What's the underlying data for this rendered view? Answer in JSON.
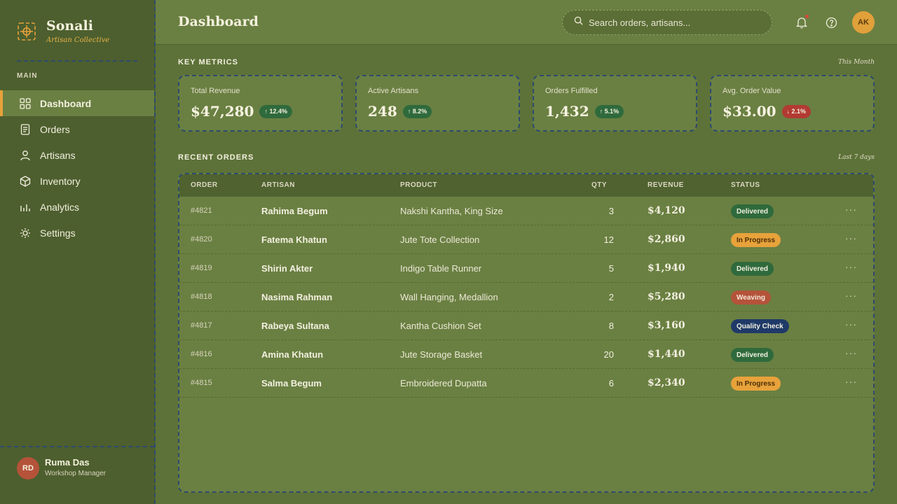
{
  "brand": {
    "name": "Sonali",
    "tagline": "Artisan Collective"
  },
  "sidebar": {
    "section_label": "MAIN",
    "items": [
      {
        "label": "Dashboard",
        "icon": "grid-icon",
        "active": true
      },
      {
        "label": "Orders",
        "icon": "document-icon"
      },
      {
        "label": "Artisans",
        "icon": "person-icon"
      },
      {
        "label": "Inventory",
        "icon": "box-icon"
      },
      {
        "label": "Analytics",
        "icon": "bar-chart-icon"
      },
      {
        "label": "Settings",
        "icon": "sun-gear-icon"
      }
    ],
    "user": {
      "initials": "RD",
      "name": "Ruma Das",
      "role": "Workshop Manager"
    }
  },
  "header": {
    "title": "Dashboard",
    "search_placeholder": "Search orders, artisans...",
    "user_initials": "AK"
  },
  "metrics": {
    "title": "KEY METRICS",
    "period": "This Month",
    "cards": [
      {
        "label": "Total Revenue",
        "value": "$47,280",
        "delta": "↑ 12.4%",
        "trend": "up"
      },
      {
        "label": "Active Artisans",
        "value": "248",
        "delta": "↑ 8.2%",
        "trend": "up"
      },
      {
        "label": "Orders Fulfilled",
        "value": "1,432",
        "delta": "↑ 5.1%",
        "trend": "up"
      },
      {
        "label": "Avg. Order Value",
        "value": "$33.00",
        "delta": "↓ 2.1%",
        "trend": "down"
      }
    ]
  },
  "orders": {
    "title": "RECENT ORDERS",
    "period": "Last 7 days",
    "columns": [
      "ORDER",
      "ARTISAN",
      "PRODUCT",
      "QTY",
      "REVENUE",
      "STATUS"
    ],
    "rows": [
      {
        "order": "#4821",
        "artisan": "Rahima Begum",
        "product": "Nakshi Kantha, King Size",
        "qty": "3",
        "revenue": "$4,120",
        "status": "Delivered"
      },
      {
        "order": "#4820",
        "artisan": "Fatema Khatun",
        "product": "Jute Tote Collection",
        "qty": "12",
        "revenue": "$2,860",
        "status": "In Progress"
      },
      {
        "order": "#4819",
        "artisan": "Shirin Akter",
        "product": "Indigo Table Runner",
        "qty": "5",
        "revenue": "$1,940",
        "status": "Delivered"
      },
      {
        "order": "#4818",
        "artisan": "Nasima Rahman",
        "product": "Wall Hanging, Medallion",
        "qty": "2",
        "revenue": "$5,280",
        "status": "Weaving"
      },
      {
        "order": "#4817",
        "artisan": "Rabeya Sultana",
        "product": "Kantha Cushion Set",
        "qty": "8",
        "revenue": "$3,160",
        "status": "Quality Check"
      },
      {
        "order": "#4816",
        "artisan": "Amina Khatun",
        "product": "Jute Storage Basket",
        "qty": "20",
        "revenue": "$1,440",
        "status": "Delivered"
      },
      {
        "order": "#4815",
        "artisan": "Salma Begum",
        "product": "Embroidered Dupatta",
        "qty": "6",
        "revenue": "$2,340",
        "status": "In Progress"
      }
    ],
    "more_label": "···"
  },
  "colors": {
    "background": "#5d7238",
    "sidebar": "#4d5f2e",
    "accent": "#e8a23b",
    "delivered": "#2f6a3c",
    "in_progress": "#e8a23b",
    "weaving": "#b4533a",
    "quality_check": "#1f3a68",
    "negative": "#b23a32"
  }
}
